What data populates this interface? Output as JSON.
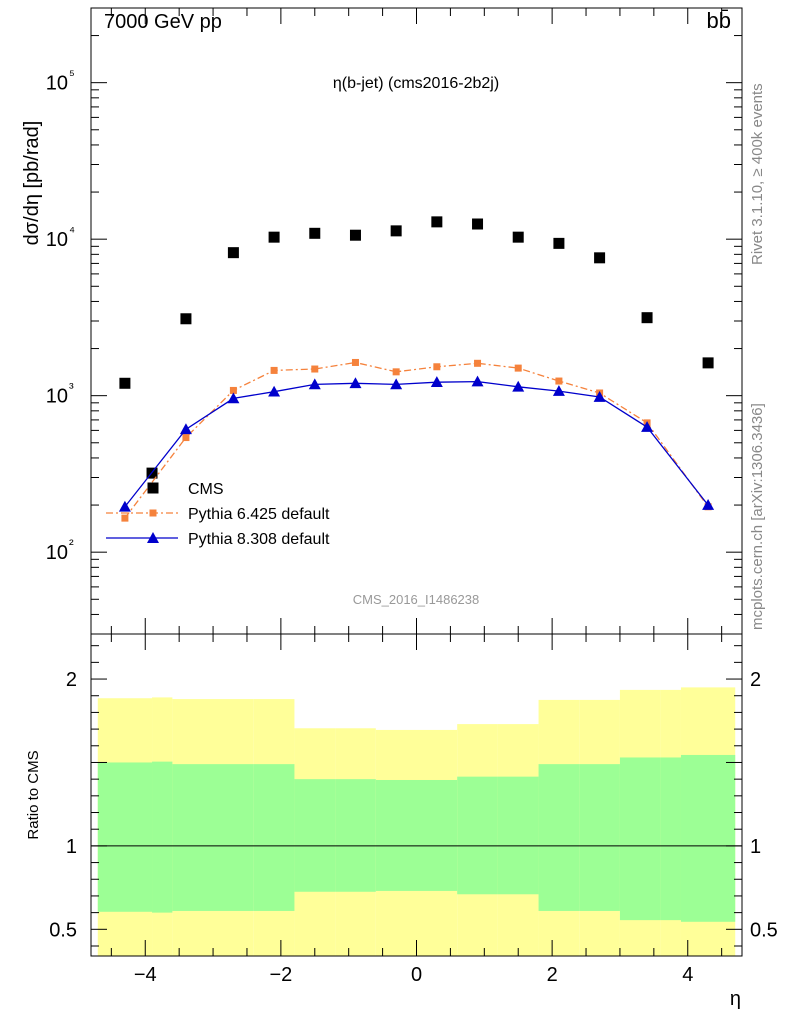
{
  "header": {
    "energy_label": "7000 GeV pp",
    "process_label": "bb̄"
  },
  "side_labels": {
    "rivet": "Rivet 3.1.10, ≥ 400k events",
    "mcplots": "mcplots.cern.ch [arXiv:1306.3436]"
  },
  "chart_data": [
    {
      "type": "scatter",
      "panel": "main",
      "title": "η(b-jet) (cms2016-2b2j)",
      "analysis_label": "CMS_2016_I1486238",
      "xlabel": "η",
      "ylabel": "dσ/dη [pb/rad]",
      "yscale": "log",
      "xlim": [
        -4.8,
        4.8
      ],
      "ylim": [
        30,
        300000
      ],
      "yticks": [
        {
          "value": 100,
          "label": "10²"
        },
        {
          "value": 1000,
          "label": "10³"
        },
        {
          "value": 10000,
          "label": "10⁴"
        },
        {
          "value": 100000,
          "label": "10⁵"
        }
      ],
      "legend_position": "lower-left",
      "series": [
        {
          "name": "CMS",
          "color": "#000000",
          "marker": "square",
          "line": "none",
          "x": [
            -4.3,
            -3.9,
            -3.4,
            -2.7,
            -2.1,
            -1.5,
            -0.9,
            -0.3,
            0.3,
            0.9,
            1.5,
            2.1,
            2.7,
            3.4,
            4.3
          ],
          "y": [
            1200,
            320,
            3100,
            8200,
            10300,
            10900,
            10600,
            11300,
            12900,
            12500,
            10300,
            9400,
            7600,
            3150,
            1620
          ]
        },
        {
          "name": "Pythia 6.425 default",
          "color": "#f5823c",
          "marker": "square",
          "line": "dashdot",
          "x": [
            -4.3,
            -3.4,
            -2.7,
            -2.1,
            -1.5,
            -0.9,
            -0.3,
            0.3,
            0.9,
            1.5,
            2.1,
            2.7,
            3.4,
            4.3
          ],
          "y": [
            165,
            540,
            1080,
            1450,
            1480,
            1630,
            1420,
            1530,
            1610,
            1500,
            1240,
            1040,
            670,
            195
          ]
        },
        {
          "name": "Pythia 8.308 default",
          "color": "#0000cc",
          "marker": "triangle",
          "line": "solid",
          "x": [
            -4.3,
            -3.4,
            -2.7,
            -2.1,
            -1.5,
            -0.9,
            -0.3,
            0.3,
            0.9,
            1.5,
            2.1,
            2.7,
            3.4,
            4.3
          ],
          "y": [
            195,
            610,
            960,
            1060,
            1180,
            1200,
            1180,
            1220,
            1230,
            1140,
            1070,
            980,
            630,
            200
          ]
        }
      ]
    },
    {
      "type": "area",
      "panel": "ratio",
      "xlabel": "η",
      "ylabel": "Ratio to CMS",
      "xlim": [
        -4.8,
        4.8
      ],
      "ylim": [
        0.34,
        2.27
      ],
      "xticks": [
        {
          "value": -4,
          "label": "−4"
        },
        {
          "value": -2,
          "label": "−2"
        },
        {
          "value": 0,
          "label": "0"
        },
        {
          "value": 2,
          "label": "2"
        },
        {
          "value": 4,
          "label": "4"
        }
      ],
      "yticks": [
        {
          "value": 0.5,
          "label": "0.5"
        },
        {
          "value": 1,
          "label": "1"
        },
        {
          "value": 1.5,
          "label": ""
        },
        {
          "value": 2,
          "label": "2"
        }
      ],
      "reference_line": 1,
      "bands": {
        "bins": [
          [
            -4.7,
            -3.9
          ],
          [
            -3.9,
            -3.6
          ],
          [
            -3.6,
            -2.4
          ],
          [
            -2.4,
            -1.8
          ],
          [
            -1.8,
            -1.2
          ],
          [
            -1.2,
            -0.6
          ],
          [
            -0.6,
            0.0
          ],
          [
            0.0,
            0.6
          ],
          [
            0.6,
            1.2
          ],
          [
            1.2,
            1.8
          ],
          [
            1.8,
            2.4
          ],
          [
            2.4,
            3.0
          ],
          [
            3.0,
            3.6
          ],
          [
            3.6,
            3.9
          ],
          [
            3.9,
            4.7
          ]
        ],
        "inner": {
          "color": "#9cff95",
          "lo": [
            0.605,
            0.6,
            0.61,
            0.61,
            0.725,
            0.725,
            0.73,
            0.73,
            0.71,
            0.71,
            0.61,
            0.61,
            0.555,
            0.555,
            0.545
          ],
          "hi": [
            1.5,
            1.505,
            1.49,
            1.49,
            1.4,
            1.4,
            1.395,
            1.395,
            1.415,
            1.415,
            1.49,
            1.49,
            1.53,
            1.53,
            1.545
          ]
        },
        "outer": {
          "color": "#ffff99",
          "lo": [
            0.34,
            0.34,
            0.34,
            0.34,
            0.34,
            0.34,
            0.34,
            0.34,
            0.34,
            0.34,
            0.34,
            0.34,
            0.34,
            0.34,
            0.34
          ],
          "hi": [
            1.885,
            1.89,
            1.88,
            1.88,
            1.705,
            1.705,
            1.695,
            1.695,
            1.73,
            1.73,
            1.875,
            1.875,
            1.935,
            1.935,
            1.95
          ]
        }
      }
    }
  ]
}
